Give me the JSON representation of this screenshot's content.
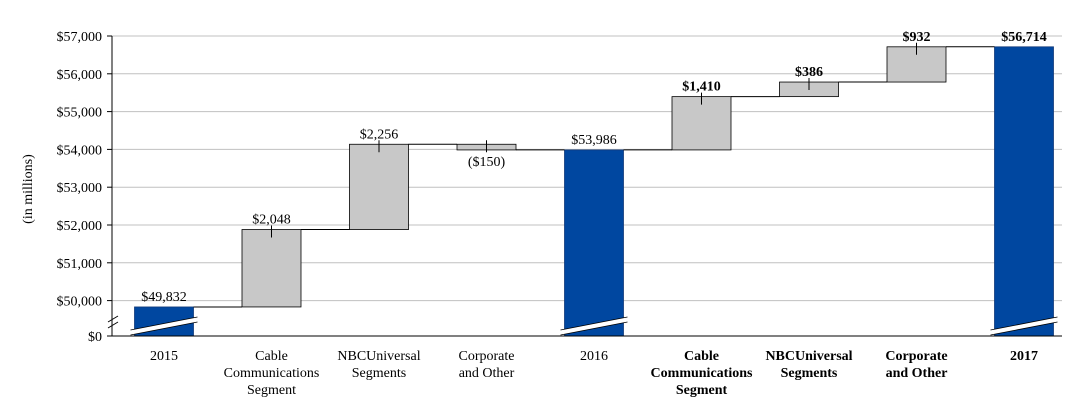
{
  "chart_data": {
    "type": "bar",
    "subtype": "waterfall",
    "ylabel": "(in millions)",
    "y_ticks": [
      "$0",
      "$50,000",
      "$51,000",
      "$52,000",
      "$53,000",
      "$54,000",
      "$55,000",
      "$56,000",
      "$57,000"
    ],
    "ylim": [
      49500,
      57000
    ],
    "axis_break": true,
    "colors": {
      "total": "#0047a0",
      "delta": "#c8c8c8",
      "connector": "#000000",
      "grid": "#c0c0c0"
    },
    "bars": [
      {
        "category": [
          "2015"
        ],
        "kind": "total",
        "start": 0,
        "end": 49832,
        "label": "$49,832",
        "bold": false
      },
      {
        "category": [
          "Cable",
          "Communications",
          "Segment"
        ],
        "kind": "delta",
        "start": 49832,
        "end": 51880,
        "label": "$2,048",
        "bold": false
      },
      {
        "category": [
          "NBCUniversal",
          "Segments"
        ],
        "kind": "delta",
        "start": 51880,
        "end": 54136,
        "label": "$2,256",
        "bold": false
      },
      {
        "category": [
          "Corporate",
          "and Other"
        ],
        "kind": "delta",
        "start": 54136,
        "end": 53986,
        "label": "($150)",
        "bold": false
      },
      {
        "category": [
          "2016"
        ],
        "kind": "total",
        "start": 0,
        "end": 53986,
        "label": "$53,986",
        "bold": false
      },
      {
        "category": [
          "Cable",
          "Communications",
          "Segment"
        ],
        "kind": "delta",
        "start": 53986,
        "end": 55396,
        "label": "$1,410",
        "bold": true
      },
      {
        "category": [
          "NBCUniversal",
          "Segments"
        ],
        "kind": "delta",
        "start": 55396,
        "end": 55782,
        "label": "$386",
        "bold": true
      },
      {
        "category": [
          "Corporate",
          "and Other"
        ],
        "kind": "delta",
        "start": 55782,
        "end": 56714,
        "label": "$932",
        "bold": true
      },
      {
        "category": [
          "2017"
        ],
        "kind": "total",
        "start": 0,
        "end": 56714,
        "label": "$56,714",
        "bold": true
      }
    ]
  }
}
